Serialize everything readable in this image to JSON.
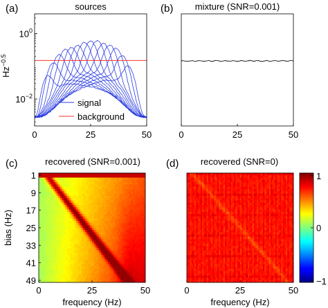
{
  "chart_data": [
    {
      "panel_label": "(a)",
      "title": "sources",
      "type": "line",
      "ylabel": "Hz",
      "ylabel_exponent": "−0.5",
      "x_ticks": [
        "0",
        "25",
        "50"
      ],
      "y_ticks": [
        {
          "value": 1,
          "base": "10",
          "exp": "0"
        },
        {
          "value": 0.01,
          "base": "10",
          "exp": "−2"
        }
      ],
      "xlim": [
        0,
        50
      ],
      "ylim": [
        0.0015,
        4
      ],
      "yscale": "log",
      "legend": {
        "position": "bottom-center",
        "entries": [
          {
            "label": "signal",
            "color": "#2b3ce0"
          },
          {
            "label": "background",
            "color": "#ff3030"
          }
        ]
      },
      "background_level": 0.15,
      "signal_peaks": [
        {
          "center": 4,
          "amplitude": 0.55
        },
        {
          "center": 7,
          "amplitude": 0.6
        },
        {
          "center": 10,
          "amplitude": 0.58
        },
        {
          "center": 13,
          "amplitude": 0.55
        },
        {
          "center": 16,
          "amplitude": 0.45
        },
        {
          "center": 19,
          "amplitude": 0.42
        },
        {
          "center": 22,
          "amplitude": 0.48
        },
        {
          "center": 25,
          "amplitude": 0.5
        },
        {
          "center": 28,
          "amplitude": 0.55
        },
        {
          "center": 31,
          "amplitude": 0.5
        },
        {
          "center": 34,
          "amplitude": 0.55
        },
        {
          "center": 37,
          "amplitude": 0.6
        },
        {
          "center": 40,
          "amplitude": 0.55
        },
        {
          "center": 43,
          "amplitude": 0.45
        }
      ]
    },
    {
      "panel_label": "(b)",
      "title": "mixture (SNR=0.001)",
      "type": "line",
      "x_ticks": [
        "0",
        "25",
        "50"
      ],
      "xlim": [
        0,
        50
      ],
      "ylim": [
        0,
        1
      ],
      "mixture_level": 0.58,
      "color": "#000000"
    },
    {
      "panel_label": "(c)",
      "title": "recovered (SNR=0.001)",
      "type": "heatmap",
      "xlabel": "frequency (Hz)",
      "ylabel": "bias (Hz)",
      "x_ticks": [
        "0",
        "25",
        "50"
      ],
      "y_ticks": [
        "1",
        "9",
        "17",
        "25",
        "33",
        "41",
        "49"
      ],
      "xlim": [
        0,
        50
      ],
      "ylim": [
        1,
        49
      ],
      "colormap": "jet",
      "clim": [
        -1,
        1
      ]
    },
    {
      "panel_label": "(d)",
      "title": "recovered (SNR=0)",
      "type": "heatmap",
      "xlabel": "frequency (Hz)",
      "x_ticks": [
        "0",
        "25",
        "50"
      ],
      "xlim": [
        0,
        50
      ],
      "ylim": [
        1,
        49
      ],
      "colormap": "jet",
      "clim": [
        -1,
        1
      ],
      "colorbar_ticks": [
        "1",
        "0",
        "−1"
      ]
    }
  ]
}
